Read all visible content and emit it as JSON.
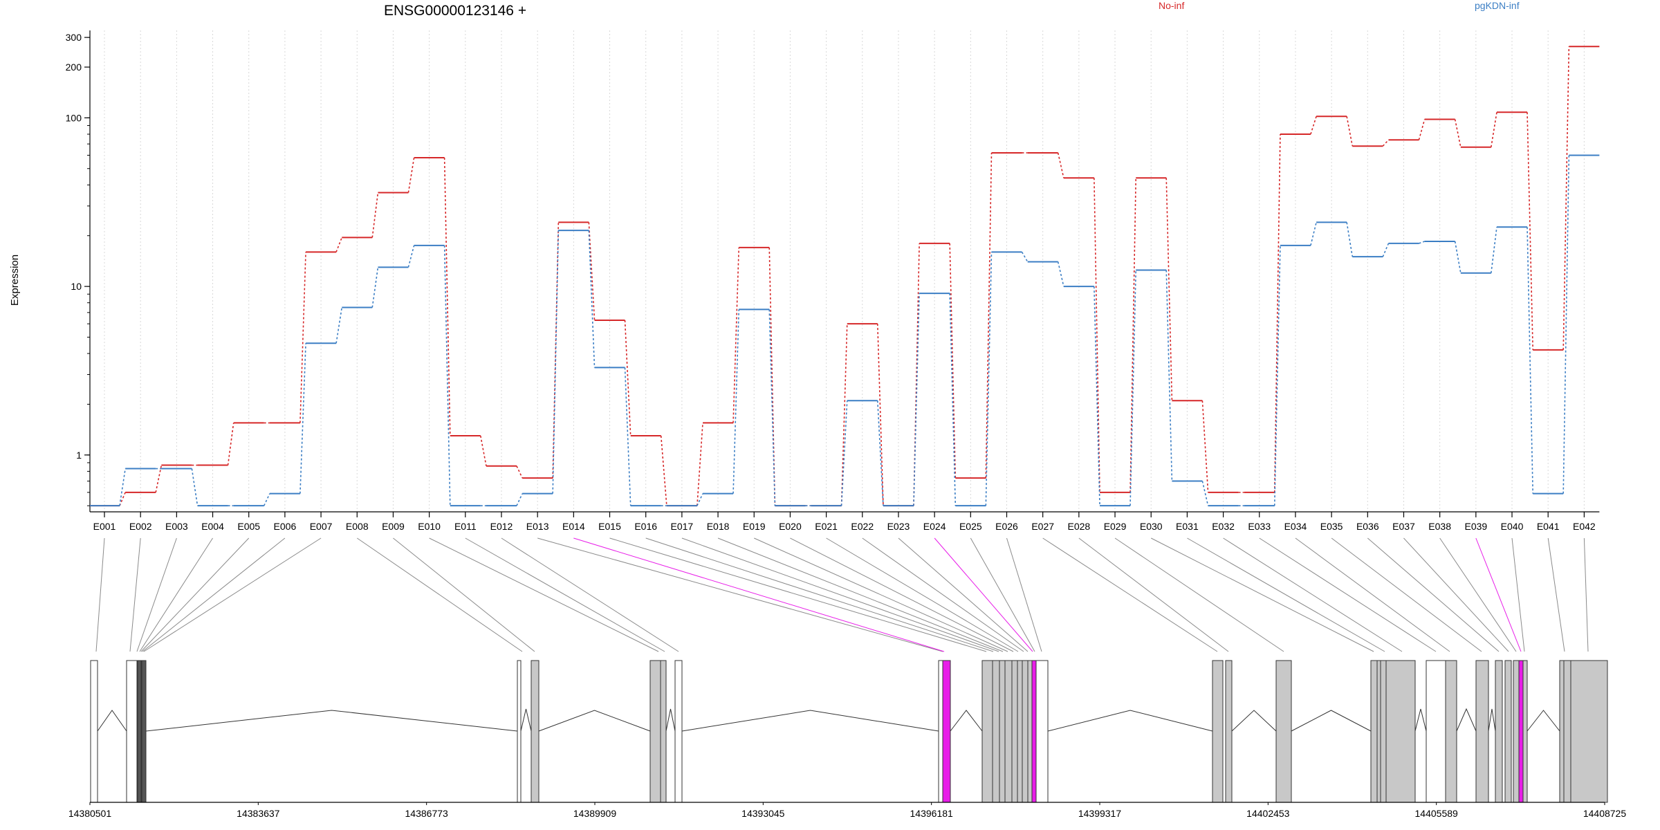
{
  "chart_data": {
    "type": "line",
    "title": "ENSG00000123146 +",
    "ylabel": "Expression",
    "yscale": "log",
    "ylim": [
      0.46,
      330
    ],
    "yticks": [
      1,
      10,
      100,
      200,
      300
    ],
    "grid": "vertical dotted at each exon",
    "legend_placement": "top",
    "categories": [
      "E001",
      "E002",
      "E003",
      "E004",
      "E005",
      "E006",
      "E007",
      "E008",
      "E009",
      "E010",
      "E011",
      "E012",
      "E013",
      "E014",
      "E015",
      "E016",
      "E017",
      "E018",
      "E019",
      "E020",
      "E021",
      "E022",
      "E023",
      "E024",
      "E025",
      "E026",
      "E027",
      "E028",
      "E029",
      "E030",
      "E031",
      "E032",
      "E033",
      "E034",
      "E035",
      "E036",
      "E037",
      "E038",
      "E039",
      "E040",
      "E041",
      "E042"
    ],
    "series": [
      {
        "name": "No-inf",
        "color": "#d62728",
        "values": [
          0.5,
          0.6,
          0.87,
          0.87,
          1.55,
          1.55,
          16,
          19.5,
          36,
          58,
          1.3,
          0.86,
          0.73,
          24,
          6.3,
          1.3,
          0.5,
          1.55,
          17,
          0.5,
          0.5,
          6,
          0.5,
          18,
          0.73,
          62,
          62,
          44,
          0.6,
          44,
          2.1,
          0.6,
          0.6,
          80,
          102,
          68,
          74,
          98,
          67,
          108,
          4.2,
          265
        ]
      },
      {
        "name": "pgKDN-inf",
        "color": "#3b7ec4",
        "values": [
          0.5,
          0.83,
          0.83,
          0.5,
          0.5,
          0.59,
          4.6,
          7.5,
          13,
          17.5,
          0.5,
          0.5,
          0.59,
          21.5,
          3.3,
          0.5,
          0.5,
          0.59,
          7.3,
          0.5,
          0.5,
          2.1,
          0.5,
          9.1,
          0.5,
          16,
          14,
          10,
          0.5,
          12.5,
          0.7,
          0.5,
          0.5,
          17.5,
          24,
          15,
          18,
          18.5,
          12,
          22.5,
          0.59,
          60
        ]
      }
    ],
    "genome_track": {
      "positions": [
        "14380501",
        "14383637",
        "14386773",
        "14389909",
        "14393045",
        "14396181",
        "14399317",
        "14402453",
        "14405589",
        "14408725"
      ],
      "highlight_color": "#e81de8"
    }
  }
}
